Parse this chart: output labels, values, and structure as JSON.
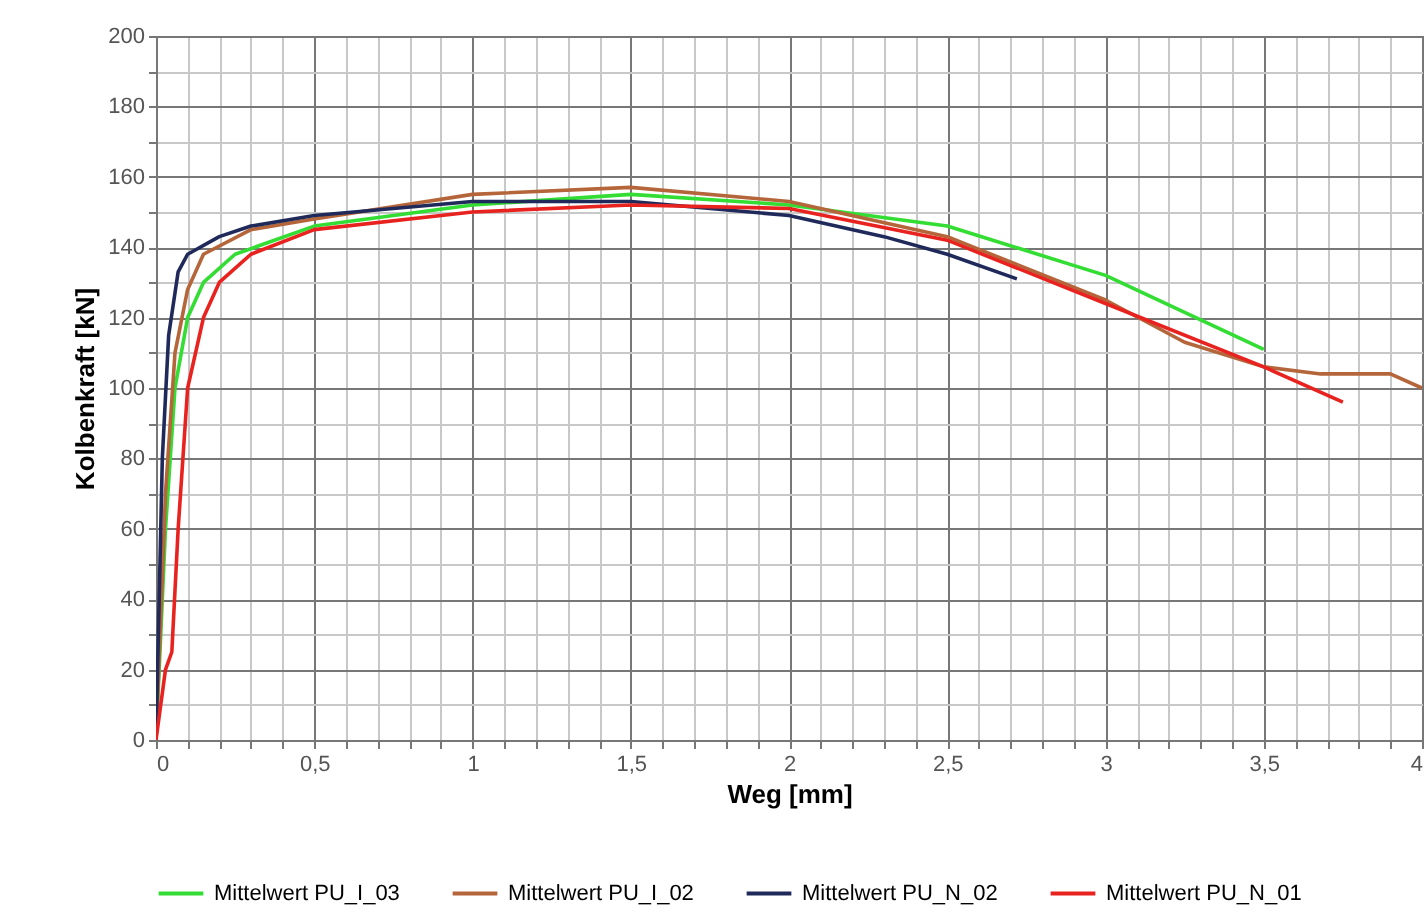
{
  "chart_data": {
    "type": "line",
    "xlabel": "Weg [mm]",
    "ylabel": "Kolbenkraft [kN]",
    "xlim": [
      0,
      4
    ],
    "ylim": [
      0,
      200
    ],
    "xticks": [
      0,
      {
        "value": 0.1,
        "label": null
      },
      {
        "value": 0.2,
        "label": null
      },
      {
        "value": 0.3,
        "label": null
      },
      {
        "value": 0.4,
        "label": null
      },
      {
        "value": 0.5,
        "label": "0,5"
      },
      {
        "value": 0.6,
        "label": null
      },
      {
        "value": 0.7,
        "label": null
      },
      {
        "value": 0.8,
        "label": null
      },
      {
        "value": 0.9,
        "label": null
      },
      1,
      {
        "value": 1.1,
        "label": null
      },
      {
        "value": 1.2,
        "label": null
      },
      {
        "value": 1.3,
        "label": null
      },
      {
        "value": 1.4,
        "label": null
      },
      {
        "value": 1.5,
        "label": "1,5"
      },
      {
        "value": 1.6,
        "label": null
      },
      {
        "value": 1.7,
        "label": null
      },
      {
        "value": 1.8,
        "label": null
      },
      {
        "value": 1.9,
        "label": null
      },
      2,
      {
        "value": 2.1,
        "label": null
      },
      {
        "value": 2.2,
        "label": null
      },
      {
        "value": 2.3,
        "label": null
      },
      {
        "value": 2.4,
        "label": null
      },
      {
        "value": 2.5,
        "label": "2,5"
      },
      {
        "value": 2.6,
        "label": null
      },
      {
        "value": 2.7,
        "label": null
      },
      {
        "value": 2.8,
        "label": null
      },
      {
        "value": 2.9,
        "label": null
      },
      3,
      {
        "value": 3.1,
        "label": null
      },
      {
        "value": 3.2,
        "label": null
      },
      {
        "value": 3.3,
        "label": null
      },
      {
        "value": 3.4,
        "label": null
      },
      {
        "value": 3.5,
        "label": "3,5"
      },
      {
        "value": 3.6,
        "label": null
      },
      {
        "value": 3.7,
        "label": null
      },
      {
        "value": 3.8,
        "label": null
      },
      {
        "value": 3.9,
        "label": null
      },
      4
    ],
    "yticks": [
      0,
      {
        "value": 10,
        "label": null
      },
      20,
      {
        "value": 30,
        "label": null
      },
      40,
      {
        "value": 50,
        "label": null
      },
      60,
      {
        "value": 70,
        "label": null
      },
      80,
      {
        "value": 90,
        "label": null
      },
      100,
      {
        "value": 110,
        "label": null
      },
      120,
      {
        "value": 130,
        "label": null
      },
      140,
      {
        "value": 150,
        "label": null
      },
      160,
      {
        "value": 170,
        "label": null
      },
      180,
      {
        "value": 190,
        "label": null
      },
      200
    ],
    "grid": true,
    "legend": "bottom",
    "marker": "none",
    "line_style": "solid",
    "series": [
      {
        "name": "Mittelwert PU_I_03",
        "color": "#33dd33",
        "x": [
          0,
          0.03,
          0.06,
          0.1,
          0.15,
          0.25,
          0.5,
          1.0,
          1.5,
          2.0,
          2.5,
          3.0,
          3.5
        ],
        "values": [
          0,
          60,
          100,
          120,
          130,
          138,
          146,
          152,
          155,
          152,
          146,
          132,
          111
        ]
      },
      {
        "name": "Mittelwert PU_I_02",
        "color": "#b5653a",
        "x": [
          0,
          0.03,
          0.06,
          0.1,
          0.15,
          0.3,
          0.5,
          1.0,
          1.5,
          2.0,
          2.5,
          3.0,
          3.25,
          3.5,
          3.68,
          3.9,
          4.0
        ],
        "values": [
          0,
          70,
          110,
          128,
          138,
          145,
          148,
          155,
          157,
          153,
          143,
          125,
          113,
          106,
          104,
          104,
          100
        ]
      },
      {
        "name": "Mittelwert PU_N_02",
        "color": "#1f2a5a",
        "x": [
          0,
          0.02,
          0.04,
          0.07,
          0.1,
          0.2,
          0.3,
          0.5,
          1.0,
          1.5,
          2.0,
          2.3,
          2.5,
          2.72
        ],
        "values": [
          0,
          80,
          115,
          133,
          138,
          143,
          146,
          149,
          153,
          153,
          149,
          143,
          138,
          131
        ]
      },
      {
        "name": "Mittelwert PU_N_01",
        "color": "#e8231f",
        "x": [
          0,
          0.03,
          0.05,
          0.07,
          0.1,
          0.15,
          0.2,
          0.3,
          0.5,
          1.0,
          1.5,
          2.0,
          2.5,
          3.0,
          3.5,
          3.75
        ],
        "values": [
          0,
          20,
          25,
          60,
          100,
          120,
          130,
          138,
          145,
          150,
          152,
          151,
          142,
          124,
          106,
          96
        ]
      }
    ]
  }
}
